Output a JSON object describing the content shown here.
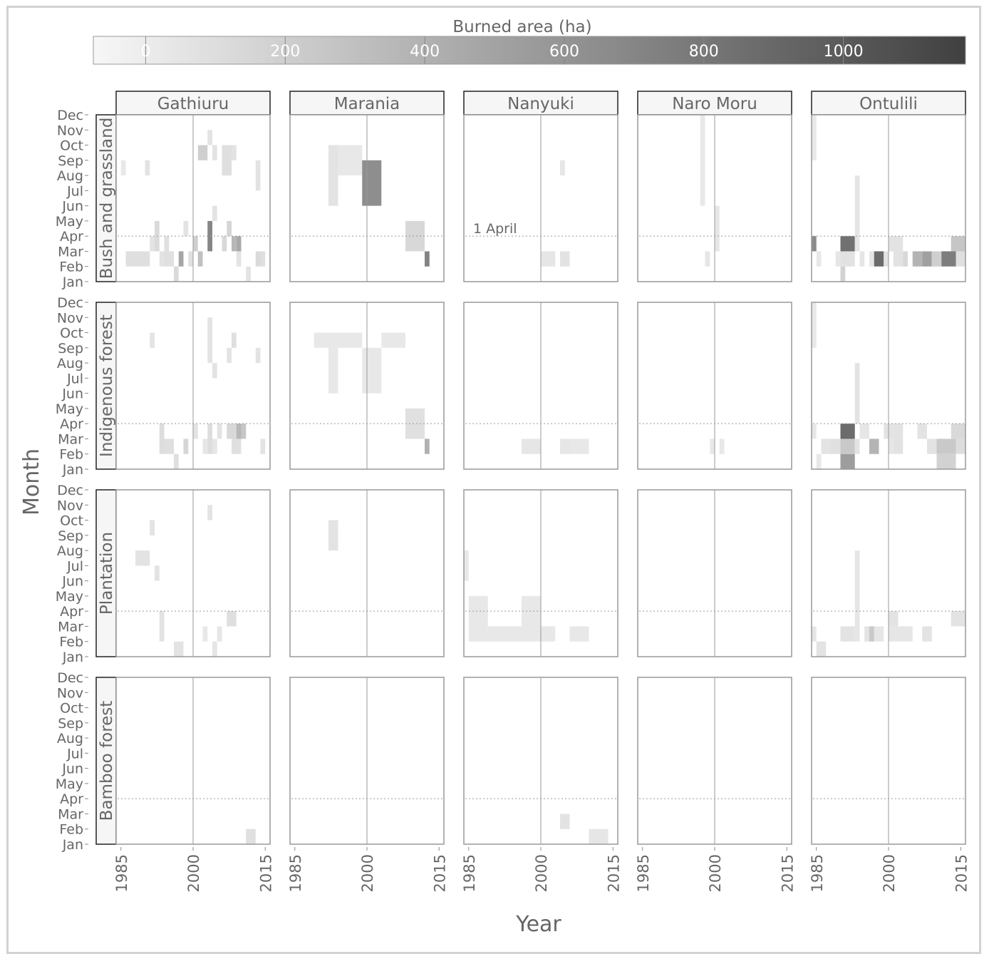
{
  "chart_data": {
    "type": "heatmap",
    "colorbar": {
      "title": "Burned area (ha)",
      "ticks": [
        0,
        200,
        400,
        600,
        800,
        1000
      ],
      "range": [
        -75,
        1175
      ],
      "colors": {
        "low": "#f7f7f7",
        "high": "#404040"
      }
    },
    "xlabel": "Year",
    "ylabel": "Month",
    "x_ticks": [
      "1985",
      "2000",
      "2015"
    ],
    "x_range": [
      1984,
      2016
    ],
    "y_ticks": [
      "Jan",
      "Feb",
      "Mar",
      "Apr",
      "May",
      "Jun",
      "Jul",
      "Aug",
      "Sep",
      "Oct",
      "Nov",
      "Dec"
    ],
    "reference_lines": {
      "vertical_year": 2000,
      "horizontal_label": "1 April"
    },
    "columns": [
      "Gathiuru",
      "Marania",
      "Nanyuki",
      "Naro Moru",
      "Ontulili"
    ],
    "rows": [
      "Bush and grassland",
      "Indigenous forest",
      "Plantation",
      "Bamboo forest"
    ],
    "cells": [
      [
        [
          [
            1985,
            1986,
            8,
            9,
            30
          ],
          [
            1986,
            1991,
            2,
            3,
            90
          ],
          [
            1990,
            1991,
            8,
            9,
            60
          ],
          [
            1991,
            1992,
            3,
            4,
            60
          ],
          [
            1992,
            1993,
            3,
            5,
            120
          ],
          [
            1993,
            1994,
            2,
            3,
            60
          ],
          [
            1994,
            1995,
            3,
            4,
            80
          ],
          [
            1994,
            1996,
            2,
            3,
            80
          ],
          [
            1996,
            1997,
            1,
            2,
            120
          ],
          [
            1997,
            1998,
            2,
            3,
            480
          ],
          [
            1998,
            1999,
            4,
            5,
            60
          ],
          [
            1999,
            2000,
            2,
            3,
            80
          ],
          [
            2000,
            2001,
            3,
            4,
            200
          ],
          [
            2001,
            2002,
            2,
            3,
            300
          ],
          [
            2001,
            2003,
            9,
            10,
            200
          ],
          [
            2003,
            2004,
            3,
            5,
            700
          ],
          [
            2003,
            2004,
            10,
            11,
            60
          ],
          [
            2004,
            2005,
            5,
            6,
            60
          ],
          [
            2004,
            2005,
            9,
            10,
            60
          ],
          [
            2006,
            2007,
            3,
            4,
            140
          ],
          [
            2006,
            2008,
            8,
            10,
            90
          ],
          [
            2007,
            2008,
            4,
            5,
            160
          ],
          [
            2008,
            2009,
            3,
            4,
            360
          ],
          [
            2009,
            2010,
            3,
            4,
            460
          ],
          [
            2008,
            2009,
            9,
            10,
            60
          ],
          [
            2009,
            2010,
            2,
            3,
            60
          ],
          [
            2011,
            2012,
            1,
            2,
            60
          ],
          [
            2013,
            2014,
            2,
            3,
            120
          ],
          [
            2013,
            2014,
            7,
            9,
            60
          ],
          [
            2014,
            2015,
            2,
            3,
            90
          ]
        ],
        [
          [
            1992,
            1994,
            6,
            10,
            60
          ],
          [
            1994,
            1999,
            8,
            10,
            30
          ],
          [
            1999,
            2003,
            6,
            9,
            640
          ],
          [
            2008,
            2012,
            3,
            5,
            140
          ],
          [
            2012,
            2013,
            2,
            3,
            720
          ]
        ],
        [
          [
            2000,
            2003,
            2,
            3,
            40
          ],
          [
            2004,
            2006,
            2,
            3,
            60
          ],
          [
            2004,
            2005,
            8,
            9,
            40
          ]
        ],
        [
          [
            1997,
            1998,
            6,
            12,
            30
          ],
          [
            1998,
            1999,
            2,
            3,
            40
          ],
          [
            2000,
            2001,
            3,
            6,
            40
          ]
        ],
        [
          [
            1984,
            1985,
            9,
            12,
            30
          ],
          [
            1984,
            1985,
            3,
            4,
            660
          ],
          [
            1985,
            1986,
            2,
            3,
            30
          ],
          [
            1989,
            1990,
            2,
            3,
            40
          ],
          [
            1990,
            1991,
            1,
            2,
            180
          ],
          [
            1990,
            1993,
            2,
            3,
            70
          ],
          [
            1990,
            1993,
            3,
            4,
            840
          ],
          [
            1993,
            1994,
            3,
            8,
            50
          ],
          [
            1994,
            1995,
            2,
            3,
            40
          ],
          [
            1996,
            1997,
            2,
            3,
            40
          ],
          [
            1997,
            1999,
            2,
            3,
            880
          ],
          [
            1999,
            2000,
            2,
            3,
            70
          ],
          [
            2000,
            2003,
            3,
            4,
            60
          ],
          [
            2001,
            2002,
            2,
            3,
            60
          ],
          [
            2002,
            2003,
            2,
            3,
            70
          ],
          [
            2003,
            2004,
            2,
            3,
            140
          ],
          [
            2005,
            2007,
            2,
            3,
            380
          ],
          [
            2007,
            2009,
            2,
            3,
            520
          ],
          [
            2009,
            2011,
            2,
            3,
            200
          ],
          [
            2011,
            2014,
            2,
            3,
            760
          ],
          [
            2014,
            2017,
            2,
            3,
            90
          ],
          [
            2013,
            2017,
            3,
            4,
            260
          ]
        ]
      ],
      [
        [
          [
            1991,
            1992,
            9,
            10,
            60
          ],
          [
            1993,
            1994,
            2,
            4,
            100
          ],
          [
            1994,
            1996,
            2,
            3,
            90
          ],
          [
            1996,
            1997,
            1,
            2,
            90
          ],
          [
            1998,
            1999,
            2,
            3,
            150
          ],
          [
            2000,
            2001,
            3,
            4,
            60
          ],
          [
            2002,
            2003,
            2,
            3,
            40
          ],
          [
            2003,
            2004,
            2,
            4,
            100
          ],
          [
            2003,
            2004,
            8,
            11,
            60
          ],
          [
            2004,
            2005,
            2,
            3,
            40
          ],
          [
            2004,
            2005,
            7,
            8,
            60
          ],
          [
            2005,
            2006,
            3,
            4,
            60
          ],
          [
            2007,
            2008,
            8,
            9,
            60
          ],
          [
            2007,
            2009,
            3,
            4,
            140
          ],
          [
            2008,
            2010,
            2,
            3,
            80
          ],
          [
            2009,
            2010,
            3,
            4,
            360
          ],
          [
            2008,
            2009,
            9,
            10,
            90
          ],
          [
            2010,
            2011,
            3,
            4,
            260
          ],
          [
            2013,
            2014,
            8,
            9,
            60
          ],
          [
            2014,
            2015,
            2,
            3,
            60
          ]
        ],
        [
          [
            1989,
            1994,
            9,
            10,
            30
          ],
          [
            1992,
            1994,
            6,
            9,
            30
          ],
          [
            1994,
            1999,
            9,
            10,
            30
          ],
          [
            1999,
            2003,
            6,
            9,
            30
          ],
          [
            2003,
            2008,
            9,
            10,
            30
          ],
          [
            2008,
            2012,
            3,
            5,
            80
          ],
          [
            2012,
            2013,
            2,
            3,
            400
          ]
        ],
        [
          [
            1996,
            2000,
            2,
            3,
            40
          ],
          [
            2004,
            2006,
            2,
            3,
            40
          ],
          [
            2006,
            2010,
            2,
            3,
            30
          ]
        ],
        [
          [
            1999,
            2000,
            2,
            3,
            30
          ],
          [
            2001,
            2002,
            2,
            3,
            30
          ]
        ],
        [
          [
            1984,
            1985,
            9,
            12,
            30
          ],
          [
            1984,
            1985,
            3,
            4,
            30
          ],
          [
            1985,
            1986,
            1,
            2,
            30
          ],
          [
            1986,
            1988,
            2,
            3,
            60
          ],
          [
            1988,
            1990,
            2,
            3,
            80
          ],
          [
            1990,
            1993,
            1,
            2,
            540
          ],
          [
            1990,
            1993,
            2,
            3,
            240
          ],
          [
            1990,
            1993,
            3,
            4,
            880
          ],
          [
            1993,
            1994,
            2,
            3,
            60
          ],
          [
            1993,
            1994,
            4,
            8,
            60
          ],
          [
            1994,
            1996,
            3,
            4,
            40
          ],
          [
            1996,
            1998,
            2,
            3,
            380
          ],
          [
            1999,
            2000,
            3,
            4,
            60
          ],
          [
            2000,
            2001,
            2,
            3,
            40
          ],
          [
            2000,
            2003,
            3,
            4,
            60
          ],
          [
            2001,
            2003,
            2,
            3,
            70
          ],
          [
            2006,
            2008,
            3,
            4,
            60
          ],
          [
            2008,
            2010,
            2,
            3,
            60
          ],
          [
            2010,
            2014,
            2,
            3,
            240
          ],
          [
            2010,
            2014,
            1,
            2,
            180
          ],
          [
            2014,
            2017,
            2,
            3,
            100
          ],
          [
            2013,
            2017,
            3,
            4,
            130
          ]
        ]
      ],
      [
        [
          [
            1991,
            1992,
            9,
            10,
            60
          ],
          [
            1988,
            1991,
            7,
            8,
            60
          ],
          [
            1992,
            1993,
            6,
            7,
            60
          ],
          [
            1993,
            1994,
            2,
            4,
            60
          ],
          [
            1996,
            1998,
            1,
            2,
            60
          ],
          [
            2002,
            2003,
            2,
            3,
            30
          ],
          [
            2003,
            2004,
            10,
            11,
            60
          ],
          [
            2004,
            2005,
            1,
            2,
            40
          ],
          [
            2005,
            2006,
            2,
            3,
            40
          ],
          [
            2007,
            2009,
            3,
            4,
            90
          ]
        ],
        [
          [
            1992,
            1994,
            8,
            10,
            60
          ]
        ],
        [
          [
            1984,
            1985,
            6,
            8,
            30
          ],
          [
            1985,
            1989,
            2,
            5,
            30
          ],
          [
            1989,
            1996,
            2,
            3,
            30
          ],
          [
            1996,
            2000,
            2,
            5,
            30
          ],
          [
            2000,
            2003,
            2,
            3,
            30
          ],
          [
            2006,
            2010,
            2,
            3,
            30
          ]
        ],
        [],
        [
          [
            1984,
            1985,
            2,
            3,
            40
          ],
          [
            1985,
            1987,
            1,
            2,
            60
          ],
          [
            1990,
            1993,
            2,
            3,
            60
          ],
          [
            1993,
            1994,
            4,
            8,
            40
          ],
          [
            1993,
            1994,
            2,
            4,
            40
          ],
          [
            1995,
            1997,
            2,
            3,
            60
          ],
          [
            1996,
            1997,
            2,
            3,
            240
          ],
          [
            1997,
            1999,
            2,
            3,
            40
          ],
          [
            2000,
            2002,
            3,
            4,
            60
          ],
          [
            2000,
            2005,
            2,
            3,
            40
          ],
          [
            2007,
            2009,
            2,
            3,
            60
          ],
          [
            2013,
            2017,
            3,
            4,
            60
          ]
        ]
      ],
      [
        [
          [
            2011,
            2013,
            1,
            2,
            80
          ]
        ],
        [],
        [
          [
            2004,
            2006,
            2,
            3,
            60
          ],
          [
            2010,
            2014,
            1,
            2,
            40
          ]
        ],
        [],
        []
      ]
    ]
  }
}
